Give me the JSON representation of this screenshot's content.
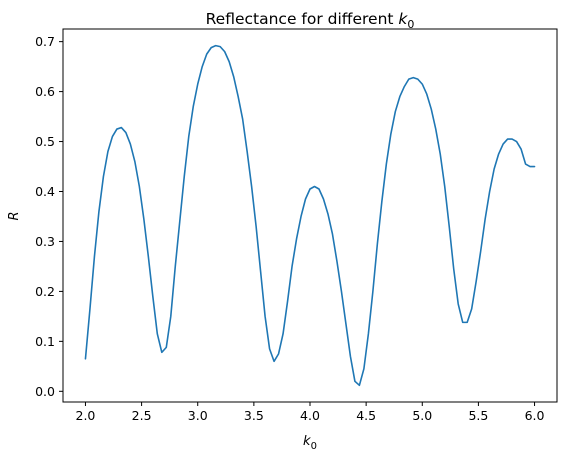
{
  "chart_data": {
    "type": "line",
    "title": "Reflectance for different k₀",
    "title_parts": {
      "text": "Reflectance for different ",
      "var": "k",
      "sub": "0"
    },
    "xlabel": {
      "var": "k",
      "sub": "0"
    },
    "ylabel": "R",
    "xlim": [
      1.8,
      6.2
    ],
    "ylim": [
      -0.0214,
      0.7253
    ],
    "xticks": [
      2.0,
      2.5,
      3.0,
      3.5,
      4.0,
      4.5,
      5.0,
      5.5,
      6.0
    ],
    "xtick_labels": [
      "2.0",
      "2.5",
      "3.0",
      "3.5",
      "4.0",
      "4.5",
      "5.0",
      "5.5",
      "6.0"
    ],
    "yticks": [
      0.0,
      0.1,
      0.2,
      0.3,
      0.4,
      0.5,
      0.6,
      0.7
    ],
    "ytick_labels": [
      "0.0",
      "0.1",
      "0.2",
      "0.3",
      "0.4",
      "0.5",
      "0.6",
      "0.7"
    ],
    "grid": false,
    "series": [
      {
        "color": "#1f77b4",
        "x": [
          2.0,
          2.04,
          2.08,
          2.12,
          2.16,
          2.2,
          2.24,
          2.28,
          2.32,
          2.36,
          2.4,
          2.44,
          2.48,
          2.52,
          2.56,
          2.6,
          2.64,
          2.68,
          2.72,
          2.76,
          2.8,
          2.84,
          2.88,
          2.92,
          2.96,
          3.0,
          3.04,
          3.08,
          3.12,
          3.16,
          3.2,
          3.24,
          3.28,
          3.32,
          3.36,
          3.4,
          3.44,
          3.48,
          3.52,
          3.56,
          3.6,
          3.64,
          3.68,
          3.72,
          3.76,
          3.8,
          3.84,
          3.88,
          3.92,
          3.96,
          4.0,
          4.04,
          4.08,
          4.12,
          4.16,
          4.2,
          4.24,
          4.28,
          4.32,
          4.36,
          4.4,
          4.44,
          4.48,
          4.52,
          4.56,
          4.6,
          4.64,
          4.68,
          4.72,
          4.76,
          4.8,
          4.84,
          4.88,
          4.92,
          4.96,
          5.0,
          5.04,
          5.08,
          5.12,
          5.16,
          5.2,
          5.24,
          5.28,
          5.32,
          5.36,
          5.4,
          5.44,
          5.48,
          5.52,
          5.56,
          5.6,
          5.64,
          5.68,
          5.72,
          5.76,
          5.8,
          5.84,
          5.88,
          5.92,
          5.96,
          6.0
        ],
        "y": [
          0.065,
          0.165,
          0.27,
          0.36,
          0.43,
          0.48,
          0.51,
          0.525,
          0.528,
          0.518,
          0.495,
          0.46,
          0.41,
          0.345,
          0.27,
          0.19,
          0.115,
          0.078,
          0.088,
          0.15,
          0.25,
          0.34,
          0.43,
          0.51,
          0.57,
          0.615,
          0.65,
          0.675,
          0.688,
          0.692,
          0.69,
          0.68,
          0.66,
          0.63,
          0.59,
          0.545,
          0.48,
          0.41,
          0.33,
          0.24,
          0.15,
          0.085,
          0.06,
          0.075,
          0.115,
          0.18,
          0.25,
          0.305,
          0.35,
          0.385,
          0.405,
          0.41,
          0.405,
          0.385,
          0.355,
          0.315,
          0.26,
          0.2,
          0.135,
          0.07,
          0.02,
          0.012,
          0.045,
          0.115,
          0.2,
          0.295,
          0.38,
          0.455,
          0.515,
          0.56,
          0.59,
          0.61,
          0.625,
          0.628,
          0.625,
          0.615,
          0.595,
          0.565,
          0.525,
          0.475,
          0.41,
          0.33,
          0.245,
          0.175,
          0.138,
          0.138,
          0.165,
          0.22,
          0.28,
          0.345,
          0.4,
          0.445,
          0.475,
          0.495,
          0.505,
          0.505,
          0.5,
          0.485,
          0.455,
          0.45,
          0.45
        ]
      }
    ]
  }
}
